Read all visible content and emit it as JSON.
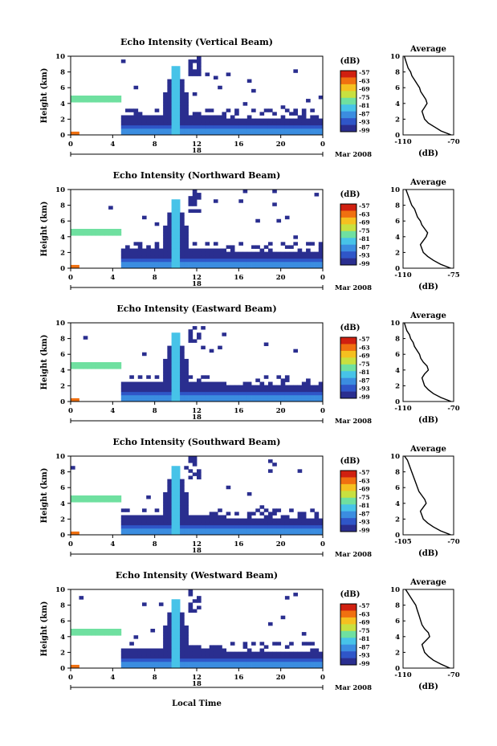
{
  "figure": {
    "xlabel": "Local Time",
    "date_label": "Mar 2008",
    "day_label": "18",
    "colorbar_unit": "(dB)",
    "colorbar_ticks": [
      "-57",
      "-63",
      "-69",
      "-75",
      "-81",
      "-87",
      "-93",
      "-99"
    ],
    "colors": [
      "#2a2e8f",
      "#2f56c8",
      "#3b8de0",
      "#47c3e8",
      "#6fe0a0",
      "#c8e040",
      "#f5c020",
      "#f07010",
      "#d02010"
    ]
  },
  "chart_data": [
    {
      "type": "heatmap",
      "title": "Echo Intensity (Vertical Beam)",
      "ylabel": "Height (km)",
      "x_ticks": [
        "0",
        "4",
        "8",
        "12",
        "16",
        "20",
        "0"
      ],
      "y_ticks": [
        "0",
        "2",
        "4",
        "6",
        "8",
        "10"
      ],
      "xlim": [
        0,
        24
      ],
      "ylim": [
        0,
        10
      ],
      "colorbar": {
        "unit": "(dB)",
        "range": [
          -99,
          -57
        ]
      },
      "average_profile": {
        "title": "Average",
        "xlabel": "(dB)",
        "x_ticks": [
          "-110",
          "-70"
        ],
        "xlim": [
          -110,
          -70
        ],
        "y_ticks": [
          "0",
          "2",
          "4",
          "6",
          "8",
          "10"
        ],
        "heights": [
          0,
          0.5,
          1,
          1.5,
          2,
          2.5,
          3,
          3.5,
          4,
          4.5,
          5,
          5.5,
          6,
          6.5,
          7,
          7.5,
          8,
          8.5,
          9,
          9.5,
          10
        ],
        "values": [
          -72,
          -80,
          -85,
          -90,
          -93,
          -94,
          -95,
          -93,
          -91,
          -92,
          -94,
          -96,
          -97,
          -99,
          -101,
          -103,
          -104,
          -106,
          -107,
          -108,
          -109
        ]
      }
    },
    {
      "type": "heatmap",
      "title": "Echo Intensity (Northward Beam)",
      "ylabel": "Height (km)",
      "x_ticks": [
        "0",
        "4",
        "8",
        "12",
        "16",
        "20",
        "0"
      ],
      "y_ticks": [
        "0",
        "2",
        "4",
        "6",
        "8",
        "10"
      ],
      "xlim": [
        0,
        24
      ],
      "ylim": [
        0,
        10
      ],
      "colorbar": {
        "unit": "(dB)",
        "range": [
          -99,
          -57
        ]
      },
      "average_profile": {
        "title": "Average",
        "xlabel": "(dB)",
        "x_ticks": [
          "-110",
          "-75"
        ],
        "xlim": [
          -110,
          -75
        ],
        "y_ticks": [
          "0",
          "2",
          "4",
          "6",
          "8",
          "10"
        ],
        "heights": [
          0,
          0.5,
          1,
          1.5,
          2,
          2.5,
          3,
          3.5,
          4,
          4.5,
          5,
          5.5,
          6,
          6.5,
          7,
          7.5,
          8,
          8.5,
          9,
          9.5,
          10
        ],
        "values": [
          -77,
          -84,
          -89,
          -93,
          -96,
          -97,
          -98,
          -96,
          -94,
          -93,
          -95,
          -97,
          -98,
          -100,
          -101,
          -102,
          -104,
          -105,
          -106,
          -107,
          -108
        ]
      }
    },
    {
      "type": "heatmap",
      "title": "Echo Intensity (Eastward Beam)",
      "ylabel": "Height (km)",
      "x_ticks": [
        "0",
        "4",
        "8",
        "12",
        "16",
        "20",
        "0"
      ],
      "y_ticks": [
        "0",
        "2",
        "4",
        "6",
        "8",
        "10"
      ],
      "xlim": [
        0,
        24
      ],
      "ylim": [
        0,
        10
      ],
      "colorbar": {
        "unit": "(dB)",
        "range": [
          -99,
          -57
        ]
      },
      "average_profile": {
        "title": "Average",
        "xlabel": "(dB)",
        "x_ticks": [
          "-110",
          "-70"
        ],
        "xlim": [
          -110,
          -70
        ],
        "y_ticks": [
          "0",
          "2",
          "4",
          "6",
          "8",
          "10"
        ],
        "heights": [
          0,
          0.5,
          1,
          1.5,
          2,
          2.5,
          3,
          3.5,
          4,
          4.5,
          5,
          5.5,
          6,
          6.5,
          7,
          7.5,
          8,
          8.5,
          9,
          9.5,
          10
        ],
        "values": [
          -72,
          -80,
          -86,
          -90,
          -93,
          -94,
          -95,
          -93,
          -90,
          -91,
          -94,
          -96,
          -97,
          -99,
          -101,
          -102,
          -104,
          -105,
          -107,
          -108,
          -109
        ]
      }
    },
    {
      "type": "heatmap",
      "title": "Echo Intensity (Southward Beam)",
      "ylabel": "Height (km)",
      "x_ticks": [
        "0",
        "4",
        "8",
        "12",
        "16",
        "20",
        "0"
      ],
      "y_ticks": [
        "0",
        "2",
        "4",
        "6",
        "8",
        "10"
      ],
      "xlim": [
        0,
        24
      ],
      "ylim": [
        0,
        10
      ],
      "colorbar": {
        "unit": "(dB)",
        "range": [
          -99,
          -57
        ]
      },
      "average_profile": {
        "title": "Average",
        "xlabel": "(dB)",
        "x_ticks": [
          "-105",
          "-70"
        ],
        "xlim": [
          -105,
          -70
        ],
        "y_ticks": [
          "0",
          "2",
          "4",
          "6",
          "8",
          "10"
        ],
        "heights": [
          0,
          0.5,
          1,
          1.5,
          2,
          2.5,
          3,
          3.5,
          4,
          4.5,
          5,
          5.5,
          6,
          6.5,
          7,
          7.5,
          8,
          8.5,
          9,
          9.5,
          10
        ],
        "values": [
          -72,
          -79,
          -84,
          -88,
          -91,
          -92,
          -93,
          -91,
          -89,
          -90,
          -92,
          -94,
          -95,
          -96,
          -97,
          -98,
          -99,
          -100,
          -101,
          -102,
          -104
        ]
      }
    },
    {
      "type": "heatmap",
      "title": "Echo Intensity (Westward Beam)",
      "ylabel": "Height (km)",
      "x_ticks": [
        "0",
        "4",
        "8",
        "12",
        "16",
        "20",
        "0"
      ],
      "y_ticks": [
        "0",
        "2",
        "4",
        "6",
        "8",
        "10"
      ],
      "xlim": [
        0,
        24
      ],
      "ylim": [
        0,
        10
      ],
      "colorbar": {
        "unit": "(dB)",
        "range": [
          -99,
          -57
        ]
      },
      "average_profile": {
        "title": "Average",
        "xlabel": "(dB)",
        "x_ticks": [
          "-110",
          "-70"
        ],
        "xlim": [
          -110,
          -70
        ],
        "y_ticks": [
          "0",
          "2",
          "4",
          "6",
          "8",
          "10"
        ],
        "heights": [
          0,
          0.5,
          1,
          1.5,
          2,
          2.5,
          3,
          3.5,
          4,
          4.5,
          5,
          5.5,
          6,
          6.5,
          7,
          7.5,
          8,
          8.5,
          9,
          9.5,
          10
        ],
        "values": [
          -73,
          -80,
          -86,
          -90,
          -93,
          -94,
          -95,
          -92,
          -89,
          -90,
          -93,
          -95,
          -96,
          -97,
          -98,
          -99,
          -100,
          -102,
          -104,
          -106,
          -108
        ]
      }
    }
  ]
}
